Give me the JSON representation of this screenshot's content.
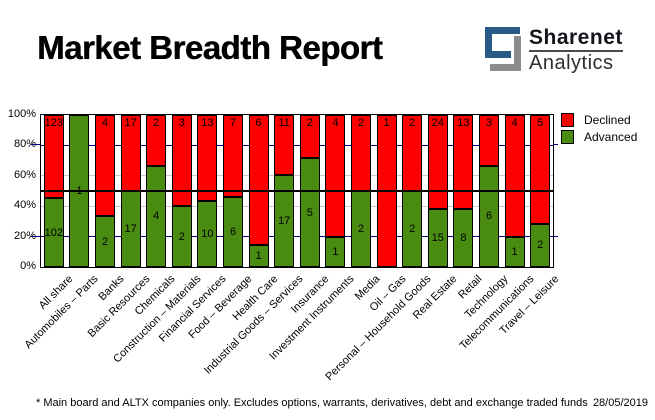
{
  "header": {
    "title": "Market Breadth Report",
    "logo": {
      "name": "Sharenet",
      "sub": "Analytics",
      "blue": "#2a5a86",
      "gray": "#8c8c8c"
    }
  },
  "legend": {
    "items": [
      {
        "label": "Declined"
      },
      {
        "label": "Advanced"
      }
    ]
  },
  "footer": {
    "note": "* Main board and ALTX companies only. Excludes options, warrants, derivatives, debt and exchange traded funds",
    "date": "28/05/2019"
  },
  "chart_data": {
    "type": "bar",
    "subtype": "100%-stacked-column",
    "categories": [
      "All share",
      "Automobiles – Parts",
      "Banks",
      "Basic Resources",
      "Chemicals",
      "Construction – Materials",
      "Financial Services",
      "Food – Beverage",
      "Health Care",
      "Industrial Goods – Services",
      "Insurance",
      "Investment Instruments",
      "Media",
      "Oil – Gas",
      "Personal – Household Goods",
      "Real Estate",
      "Retail",
      "Technology",
      "Telecommunications",
      "Travel – Leisure"
    ],
    "series": [
      {
        "name": "Declined",
        "color": "#fa0000",
        "values": [
          123,
          0,
          4,
          17,
          2,
          3,
          13,
          7,
          6,
          11,
          2,
          4,
          2,
          1,
          2,
          24,
          13,
          3,
          4,
          5
        ]
      },
      {
        "name": "Advanced",
        "color": "#4a8c12",
        "values": [
          102,
          1,
          2,
          17,
          4,
          2,
          10,
          6,
          1,
          17,
          5,
          1,
          2,
          0,
          2,
          15,
          8,
          6,
          1,
          2
        ]
      }
    ],
    "yticks": [
      "0%",
      "20%",
      "40%",
      "60%",
      "80%",
      "100%"
    ],
    "ylim": [
      0,
      100
    ],
    "grid": {
      "major_at": [
        20,
        80
      ],
      "major_color": "#000080",
      "minor_at": [
        40,
        60
      ],
      "minor_color": "#c9c9c9"
    },
    "reference_line_pct": 50,
    "legend_position": "top-right"
  }
}
